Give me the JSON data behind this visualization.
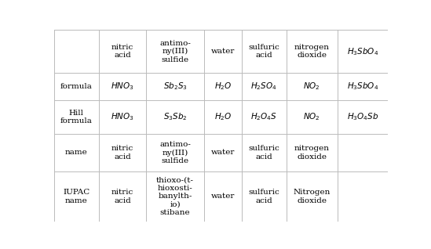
{
  "col_headers": [
    "",
    "nitric\nacid",
    "antimo-\nny(III)\nsulfide",
    "water",
    "sulfuric\nacid",
    "nitrogen\ndioxide",
    "$H_3SbO_4$"
  ],
  "row_labels": [
    "formula",
    "Hill\nformula",
    "name",
    "IUPAC\nname"
  ],
  "formula_row": [
    "$HNO_3$",
    "$Sb_2S_3$",
    "$H_2O$",
    "$H_2SO_4$",
    "$NO_2$",
    "$H_3SbO_4$"
  ],
  "hill_row": [
    "$HNO_3$",
    "$S_3Sb_2$",
    "$H_2O$",
    "$H_2O_4S$",
    "$NO_2$",
    "$H_3O_4Sb$"
  ],
  "name_row": [
    "nitric\nacid",
    "antimo-\nny(III)\nsulfide",
    "water",
    "sulfuric\nacid",
    "nitrogen\ndioxide",
    ""
  ],
  "iupac_row": [
    "nitric\nacid",
    "thioxo-(t-\nhioxosti-\nbanylth-\nio)\nstibane",
    "water",
    "sulfuric\nacid",
    "Nitrogen\ndioxide",
    ""
  ],
  "bg_color": "#ffffff",
  "grid_color": "#bbbbbb",
  "text_color": "#000000",
  "col_widths_rel": [
    1.05,
    1.1,
    1.35,
    0.87,
    1.05,
    1.18,
    1.18
  ],
  "row_heights_rel": [
    1.85,
    1.15,
    1.45,
    1.6,
    2.15
  ]
}
